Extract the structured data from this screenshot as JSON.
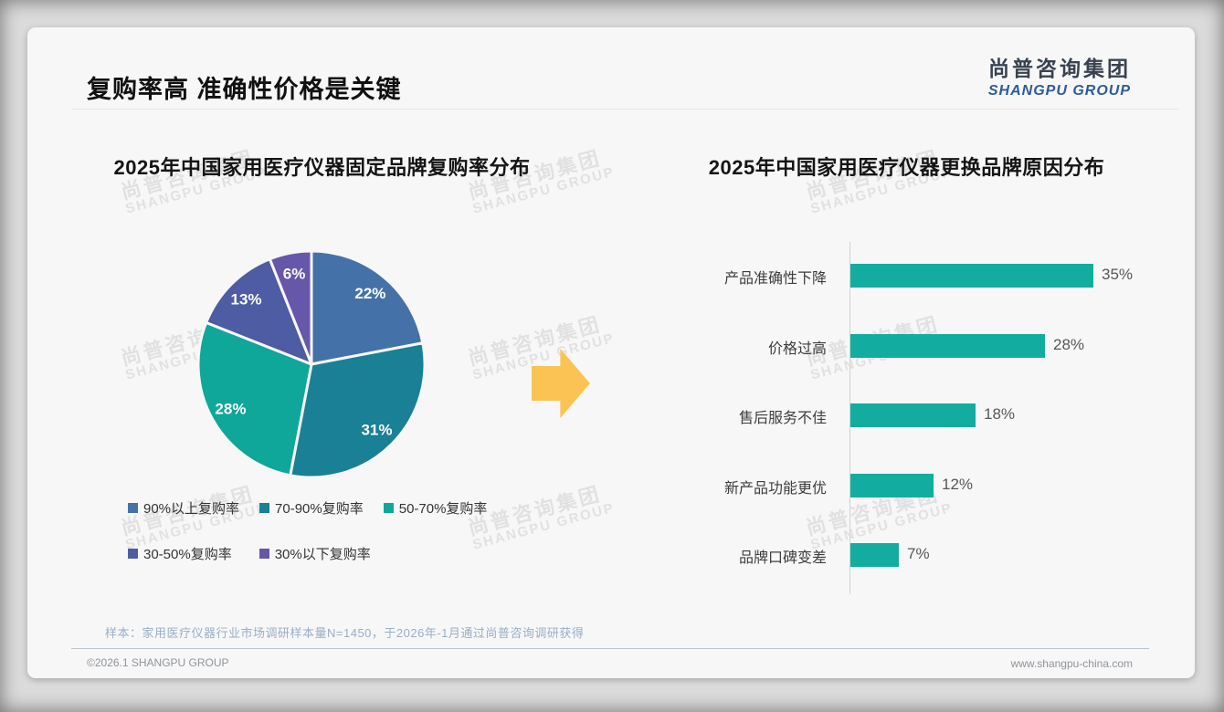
{
  "page": {
    "title": "复购率高 准确性价格是关键"
  },
  "logo": {
    "cn": "尚普咨询集团",
    "en": "SHANGPU GROUP"
  },
  "watermark": {
    "cn": "尚普咨询集团",
    "en": "SHANGPU GROUP"
  },
  "colors": {
    "pie": [
      "#4472a8",
      "#1a8095",
      "#0fa79a",
      "#4d5ca3",
      "#6757aa"
    ],
    "bar": "#12ada0",
    "arrow": "#fbc353",
    "card_bg": "#f7f7f8"
  },
  "chart_data": [
    {
      "type": "pie",
      "title": "2025年中国家用医疗仪器固定品牌复购率分布",
      "labels": [
        "90%以上复购率",
        "70-90%复购率",
        "50-70%复购率",
        "30-50%复购率",
        "30%以下复购率"
      ],
      "values": [
        22,
        31,
        28,
        13,
        6
      ],
      "data_labels": [
        "22%",
        "31%",
        "28%",
        "13%",
        "6%"
      ],
      "colors": [
        "#4472a8",
        "#1a8095",
        "#0fa79a",
        "#4d5ca3",
        "#6757aa"
      ],
      "start_angle_deg": 0,
      "direction": "clockwise",
      "legend_position": "bottom"
    },
    {
      "type": "bar",
      "orientation": "horizontal",
      "title": "2025年中国家用医疗仪器更换品牌原因分布",
      "categories": [
        "产品准确性下降",
        "价格过高",
        "售后服务不佳",
        "新产品功能更优",
        "品牌口碑变差"
      ],
      "values": [
        35,
        28,
        18,
        12,
        7
      ],
      "value_labels": [
        "35%",
        "28%",
        "18%",
        "12%",
        "7%"
      ],
      "bar_color": "#12ada0",
      "xlim": [
        0,
        35
      ],
      "grid": false,
      "legend_position": "none"
    }
  ],
  "footnote": "样本：家用医疗仪器行业市场调研样本量N=1450，于2026年-1月通过尚普咨询调研获得",
  "footer": {
    "left": "©2026.1 SHANGPU GROUP",
    "right": "www.shangpu-china.com"
  }
}
